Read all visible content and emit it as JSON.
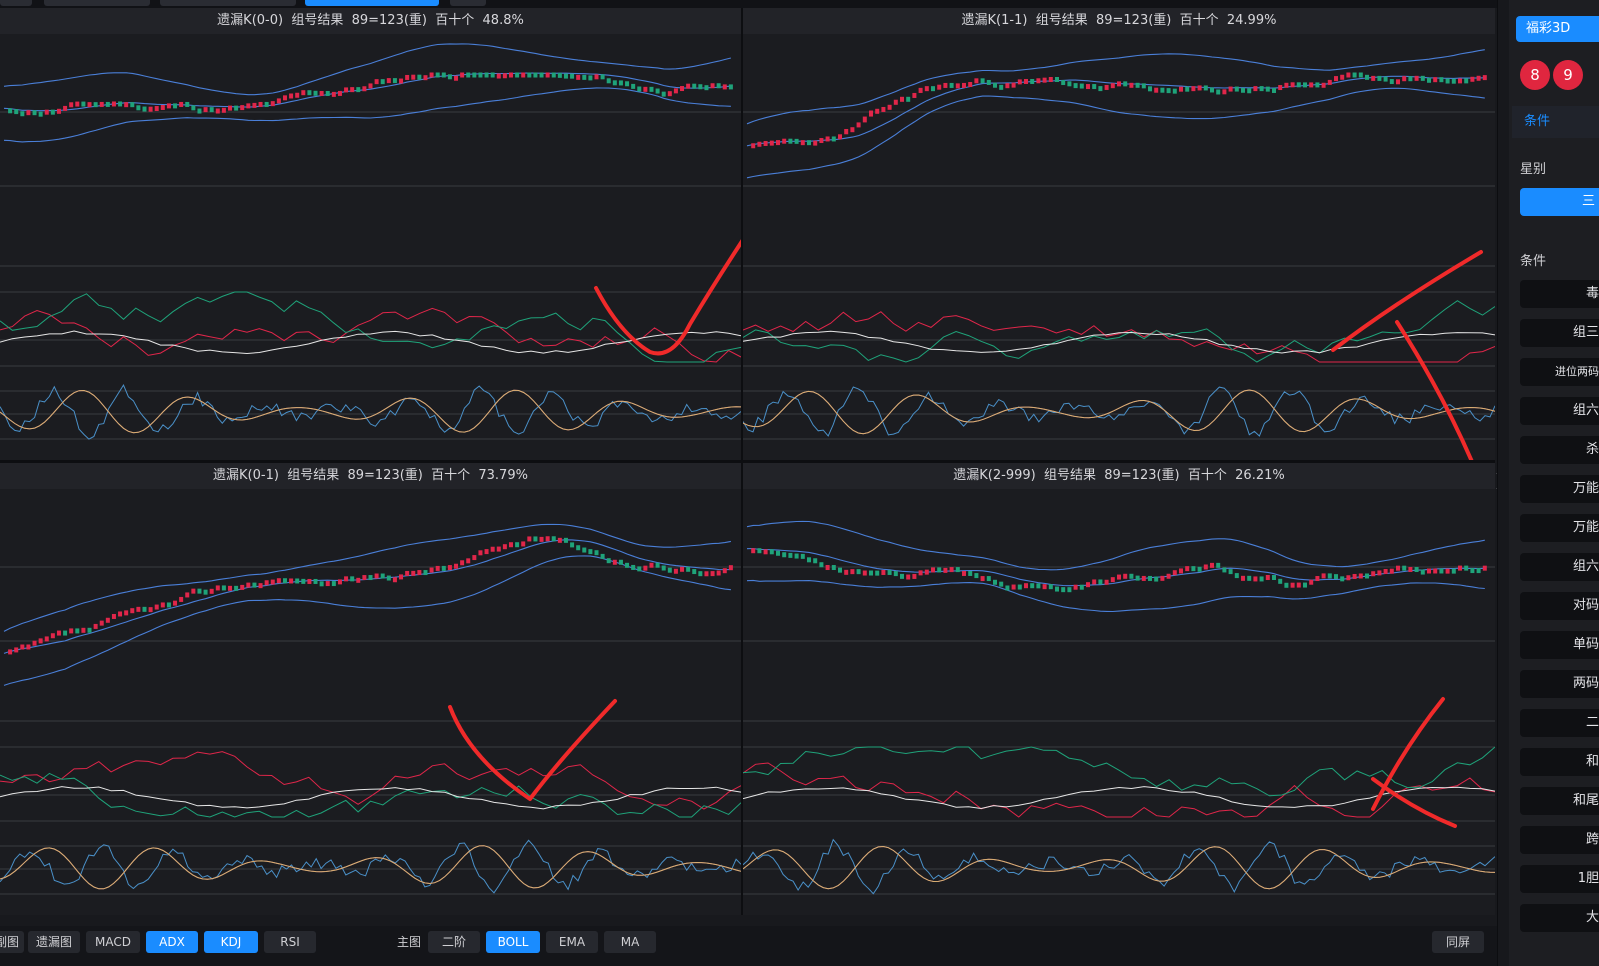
{
  "panels": [
    {
      "title": "遗漏K(0-0)  组号结果  89=123(重)  百十个  48.8%",
      "seed": 11,
      "start": 0.72,
      "trend": [
        0.05,
        0.0,
        -0.02,
        0.08,
        0.12,
        0.05,
        -0.1,
        0.0
      ],
      "mark": "check"
    },
    {
      "title": "遗漏K(1-1)  组号结果  89=123(重)  百十个  24.99%",
      "seed": 23,
      "start": 0.5,
      "trend": [
        0.02,
        0.25,
        0.05,
        -0.06,
        -0.08,
        0.06,
        0.04,
        0.02
      ],
      "mark": "cross"
    },
    {
      "title": "遗漏K(0-1)  组号结果  89=123(重)  百十个  73.79%",
      "seed": 37,
      "start": 0.2,
      "trend": [
        0.06,
        0.08,
        0.12,
        0.0,
        0.1,
        0.15,
        -0.12,
        0.04
      ],
      "mark": "check"
    },
    {
      "title": "遗漏K(2-999)  组号结果  89=123(重)  百十个  26.21%",
      "seed": 53,
      "start": 0.85,
      "trend": [
        -0.08,
        0.02,
        -0.1,
        0.04,
        0.02,
        -0.12,
        0.1,
        0.05
      ],
      "mark": "cross"
    }
  ],
  "bottom": {
    "left_tabs": [
      "副图",
      "遗漏图",
      "MACD",
      "ADX",
      "KDJ",
      "RSI"
    ],
    "left_active": [
      "ADX",
      "KDJ"
    ],
    "main_label": "主图",
    "main_tabs": [
      "二阶",
      "BOLL",
      "EMA",
      "MA"
    ],
    "main_active": [
      "BOLL"
    ],
    "right_tab": "同屏"
  },
  "right": {
    "top_button": "福彩3D",
    "balls": [
      "8",
      "9"
    ],
    "cond_tab": "条件",
    "star_label": "星别",
    "star_button": "三",
    "cond_label": "条件",
    "items": [
      "毒",
      "组三",
      "进位两码",
      "组六",
      "杀",
      "万能",
      "万能",
      "组六",
      "对码",
      "单码",
      "两码",
      "二",
      "和",
      "和尾",
      "跨",
      "1胆",
      "大"
    ]
  },
  "colors": {
    "up": "#e0264a",
    "down": "#1fa37a",
    "boll": "#4a7fd8",
    "grid": "#3a3b40",
    "mark": "#f02a2a"
  }
}
